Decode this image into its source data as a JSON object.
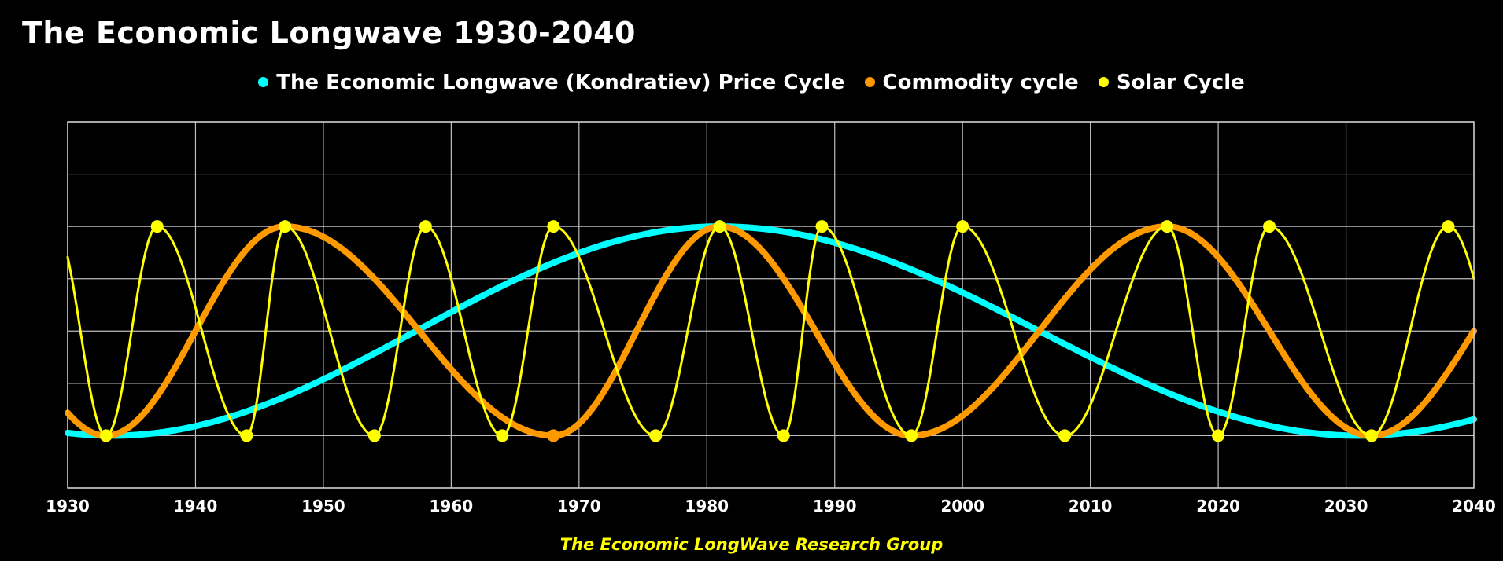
{
  "chart_data": {
    "type": "line",
    "title": "The Economic Longwave 1930-2040",
    "xlabel": "",
    "ylabel": "",
    "xlim": [
      1930,
      2040
    ],
    "ylim": [
      -1.5,
      2
    ],
    "grid": true,
    "x_ticks": [
      "1930",
      "1940",
      "1950",
      "1960",
      "1970",
      "1980",
      "1990",
      "2000",
      "2010",
      "2020",
      "2030",
      "2040"
    ],
    "legend_position": "top-center",
    "series": [
      {
        "name": "The Economic Longwave (Kondratiev) Price Cycle",
        "color": "#00ffff",
        "markers": false,
        "troughs": [
          1933.5,
          2031
        ],
        "peaks": [
          1981
        ],
        "points": [
          [
            1933.5,
            -1
          ],
          [
            1981,
            1
          ],
          [
            2031,
            -1
          ]
        ]
      },
      {
        "name": "Commodity cycle",
        "color": "#ff9900",
        "markers": false,
        "troughs": [
          1933,
          1968,
          1996,
          2032
        ],
        "peaks": [
          1947,
          1981,
          2016
        ],
        "points": [
          [
            1933,
            -1
          ],
          [
            1947,
            1
          ],
          [
            1968,
            -1
          ],
          [
            1981,
            1
          ],
          [
            1996,
            -1
          ],
          [
            2016,
            1
          ],
          [
            2032,
            -1
          ]
        ]
      },
      {
        "name": "Solar Cycle",
        "color": "#ffff00",
        "markers": true,
        "points": [
          [
            1933,
            -1
          ],
          [
            1937,
            1
          ],
          [
            1944,
            -1
          ],
          [
            1947,
            1
          ],
          [
            1954,
            -1
          ],
          [
            1958,
            1
          ],
          [
            1964,
            -1
          ],
          [
            1968,
            1
          ],
          [
            1976,
            -1
          ],
          [
            1981,
            1
          ],
          [
            1986,
            -1
          ],
          [
            1989,
            1
          ],
          [
            1996,
            -1
          ],
          [
            2000,
            1
          ],
          [
            2008,
            -1
          ],
          [
            2016,
            1
          ],
          [
            2020,
            -1
          ],
          [
            2024,
            1
          ],
          [
            2032,
            -1
          ],
          [
            2038,
            1
          ]
        ]
      }
    ],
    "footer": "The Economic LongWave Research Group"
  }
}
